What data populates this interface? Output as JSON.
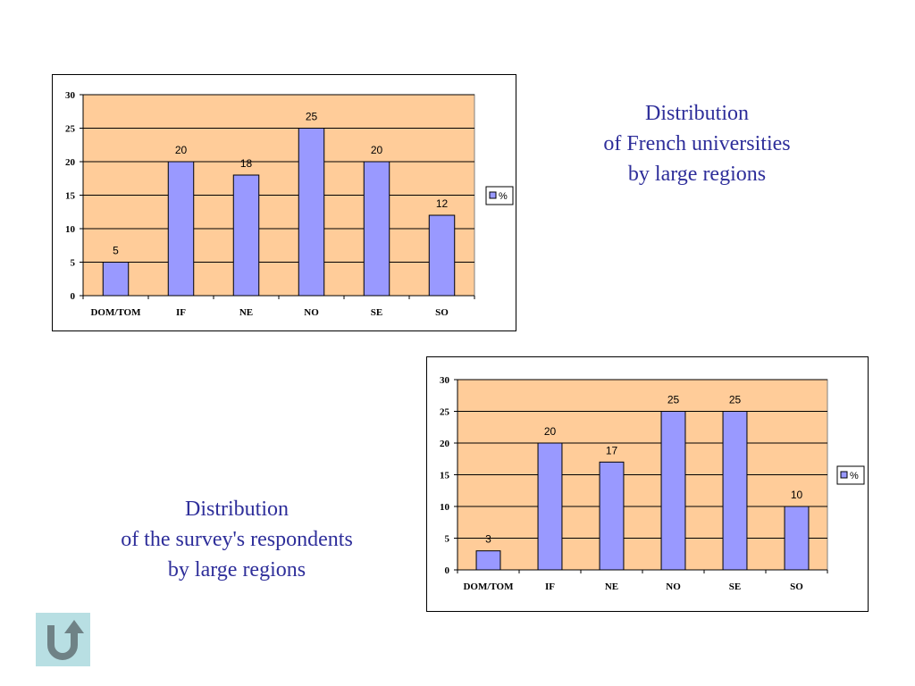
{
  "charts": [
    {
      "caption": [
        "Distribution",
        "of French universities",
        "by large regions"
      ]
    },
    {
      "caption": [
        "Distribution",
        "of the survey's respondents",
        "by large regions"
      ]
    }
  ],
  "chart_data": [
    {
      "type": "bar",
      "categories": [
        "DOM/TOM",
        "IF",
        "NE",
        "NO",
        "SE",
        "SO"
      ],
      "series": [
        {
          "name": "%",
          "values": [
            5,
            20,
            18,
            25,
            20,
            12
          ]
        }
      ],
      "data_labels": [
        "5",
        "20",
        "18",
        "25",
        "20",
        "12"
      ],
      "y_ticks": [
        "0",
        "5",
        "10",
        "15",
        "20",
        "25",
        "30"
      ],
      "ylim": [
        0,
        30
      ],
      "legend": "right",
      "grid": true,
      "colors": {
        "bar": "#9999ff",
        "plot_bg": "#ffcc99",
        "grid": "#000000"
      }
    },
    {
      "type": "bar",
      "categories": [
        "DOM/TOM",
        "IF",
        "NE",
        "NO",
        "SE",
        "SO"
      ],
      "series": [
        {
          "name": "%",
          "values": [
            3,
            20,
            17,
            25,
            25,
            10
          ]
        }
      ],
      "data_labels": [
        "3",
        "20",
        "17",
        "25",
        "25",
        "10"
      ],
      "y_ticks": [
        "0",
        "5",
        "10",
        "15",
        "20",
        "25",
        "30"
      ],
      "ylim": [
        0,
        30
      ],
      "legend": "right",
      "grid": true,
      "colors": {
        "bar": "#9999ff",
        "plot_bg": "#ffcc99",
        "grid": "#000000"
      }
    }
  ],
  "nav": {
    "back_icon": "u-turn-return-icon",
    "back_color": "#b8dfe3"
  }
}
